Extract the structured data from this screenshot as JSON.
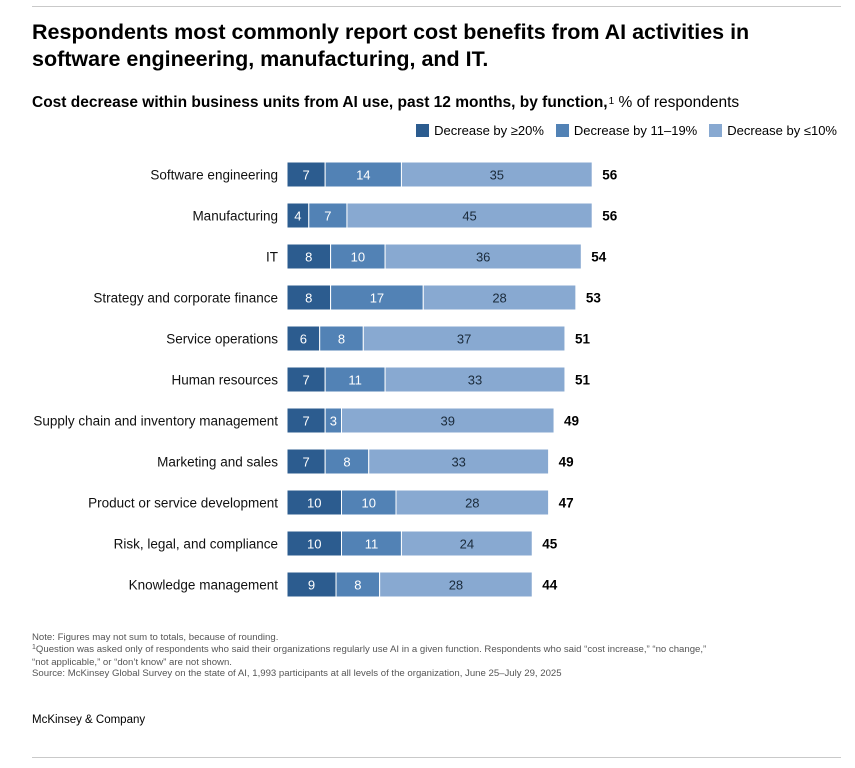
{
  "title": "Respondents most commonly report cost benefits from AI activities in software engineering, manufacturing, and IT.",
  "subtitle": {
    "main": "Cost decrease within business units from AI use, past 12 months, by function,",
    "footnote_ref": "1",
    "unit": " % of respondents"
  },
  "colors": {
    "decrease_20_plus": "#2c5c8f",
    "decrease_11_19": "#5282b5",
    "decrease_10_or_less": "#88a9d1"
  },
  "chart_data": {
    "type": "bar",
    "orientation": "horizontal",
    "stacked": true,
    "title": "Cost decrease within business units from AI use, past 12 months, by function",
    "xlabel": "% of respondents",
    "ylabel": "",
    "xlim": [
      0,
      60
    ],
    "legend_position": "top-right",
    "categories": [
      "Software engineering",
      "Manufacturing",
      "IT",
      "Strategy and corporate finance",
      "Service operations",
      "Human resources",
      "Supply chain and inventory management",
      "Marketing and sales",
      "Product or service development",
      "Risk, legal, and compliance",
      "Knowledge management"
    ],
    "series": [
      {
        "name": "Decrease by ≥20%",
        "values": [
          7,
          4,
          8,
          8,
          6,
          7,
          7,
          7,
          10,
          10,
          9
        ]
      },
      {
        "name": "Decrease by 11–19%",
        "values": [
          14,
          7,
          10,
          17,
          8,
          11,
          3,
          8,
          10,
          11,
          8
        ]
      },
      {
        "name": "Decrease by ≤10%",
        "values": [
          35,
          45,
          36,
          28,
          37,
          33,
          39,
          33,
          28,
          24,
          28
        ]
      }
    ],
    "totals": [
      56,
      56,
      54,
      53,
      51,
      51,
      49,
      49,
      47,
      45,
      44
    ]
  },
  "notes": {
    "note": "Note: Figures may not sum to totals, because of rounding.",
    "footnote_mark": "1",
    "footnote_line1": "Question was asked only of respondents who said their organizations regularly use AI in a given function. Respondents who said “cost increase,” “no change,”",
    "footnote_line2": "“not applicable,” or “don’t know” are not shown.",
    "source": "Source: McKinsey Global Survey on the state of AI, 1,993 participants at all levels of the organization, June 25–July 29, 2025"
  },
  "brand": "McKinsey & Company"
}
